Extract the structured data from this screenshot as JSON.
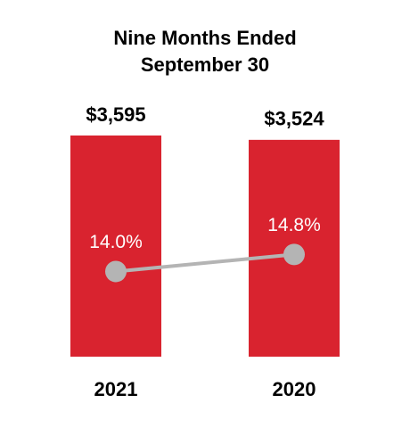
{
  "chart_data": {
    "type": "bar",
    "title": "Nine Months Ended September 30",
    "categories": [
      "2021",
      "2020"
    ],
    "series": [
      {
        "type": "bar",
        "color": "#d9232f",
        "values": [
          3595,
          3524
        ],
        "value_labels": [
          "$3,595",
          "$3,524"
        ]
      },
      {
        "type": "line",
        "axis": "y2",
        "color": "#b4b4b4",
        "values": [
          14.0,
          14.8
        ],
        "value_labels": [
          "14.0%",
          "14.8%"
        ]
      }
    ],
    "ylim": [
      0,
      4500
    ],
    "y2lim": [
      10,
      23
    ]
  }
}
